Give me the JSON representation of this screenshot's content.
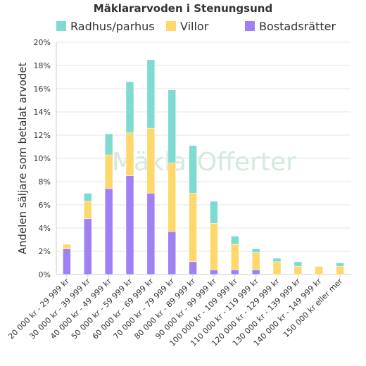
{
  "chart_data": {
    "type": "bar",
    "stacked": true,
    "title": "Mäklararvoden i Stenungsund",
    "ylabel": "Andelen säljare som betalat arvodet",
    "xlabel": "",
    "ylim": [
      0,
      20
    ],
    "yticks": [
      "0%",
      "2%",
      "4%",
      "6%",
      "8%",
      "10%",
      "12%",
      "14%",
      "16%",
      "18%",
      "20%"
    ],
    "grid": true,
    "legend_position": "top",
    "watermark": "MäklarOfferter",
    "categories": [
      "20 000 kr - 29 999 kr",
      "30 000 kr - 39 999 kr",
      "40 000 kr - 49 999 kr",
      "50 000 kr - 59 999 kr",
      "60 000 kr - 69 999 kr",
      "70 000 kr - 79 999 kr",
      "80 000 kr - 89 999 kr",
      "90 000 kr - 99 999 kr",
      "100 000 kr - 109 999 kr",
      "110 000 kr - 119 999 kr",
      "120 000 kr - 129 999 kr",
      "130 000 kr - 139 999 kr",
      "140 000 kr - 149 999 kr",
      "150 000 kr eller mer"
    ],
    "series": [
      {
        "name": "Bostadsrätter",
        "color": "#a081f3",
        "values": [
          2.2,
          4.8,
          7.4,
          8.5,
          7.0,
          3.7,
          1.1,
          0.4,
          0.4,
          0.4,
          0,
          0,
          0,
          0
        ]
      },
      {
        "name": "Villor",
        "color": "#ffd86c",
        "values": [
          0.4,
          1.5,
          2.9,
          3.7,
          5.6,
          5.9,
          5.9,
          4.0,
          2.2,
          1.5,
          1.1,
          0.7,
          0.7,
          0.7
        ]
      },
      {
        "name": "Radhus/parhus",
        "color": "#7fdbd1",
        "values": [
          0,
          0.7,
          1.8,
          4.4,
          5.9,
          6.3,
          4.1,
          1.9,
          0.7,
          0.3,
          0.3,
          0.4,
          0,
          0.3
        ]
      }
    ],
    "legend_order": [
      "Radhus/parhus",
      "Villor",
      "Bostadsrätter"
    ]
  }
}
